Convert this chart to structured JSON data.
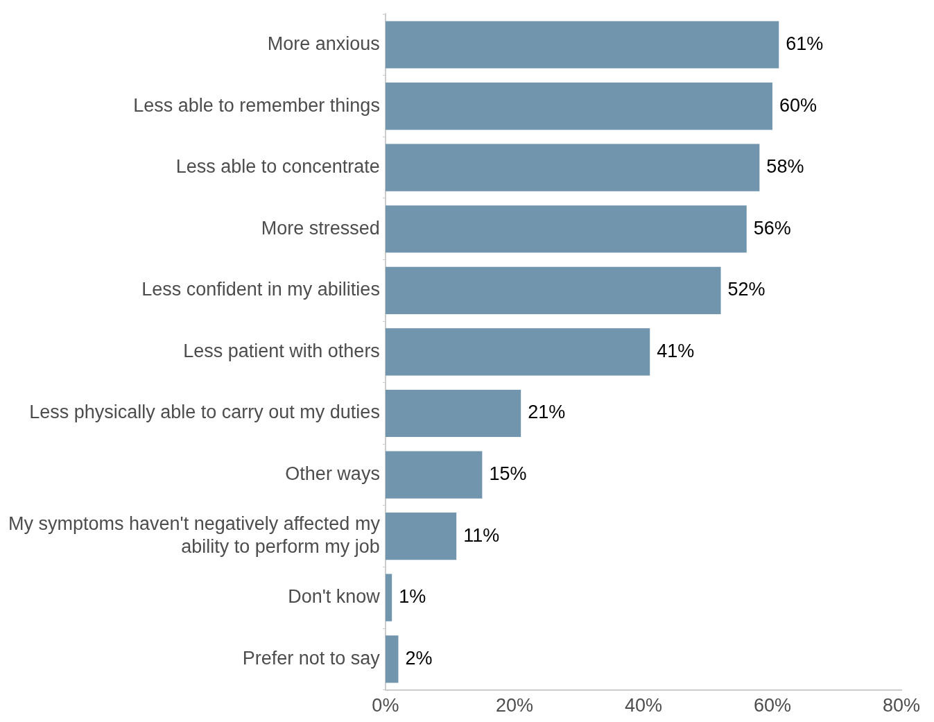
{
  "chart_data": {
    "type": "bar",
    "orientation": "horizontal",
    "categories": [
      "More anxious",
      "Less able to remember things",
      "Less able to concentrate",
      "More stressed",
      "Less confident in my abilities",
      "Less patient with others",
      "Less physically able to carry out my duties",
      "Other ways",
      "My symptoms haven't negatively affected my ability to perform my job",
      "Don't know",
      "Prefer not to say"
    ],
    "values": [
      61,
      60,
      58,
      56,
      52,
      41,
      21,
      15,
      11,
      1,
      2
    ],
    "value_labels": [
      "61%",
      "60%",
      "58%",
      "56%",
      "52%",
      "41%",
      "21%",
      "15%",
      "11%",
      "1%",
      "2%"
    ],
    "color": "#7295ae",
    "xlim": [
      0,
      80
    ],
    "xticks": [
      {
        "value": 0,
        "label": "0%"
      },
      {
        "value": 20,
        "label": "20%"
      },
      {
        "value": 40,
        "label": "40%"
      },
      {
        "value": 60,
        "label": "60%"
      },
      {
        "value": 80,
        "label": "80%"
      }
    ],
    "grid": false,
    "legend": false
  }
}
